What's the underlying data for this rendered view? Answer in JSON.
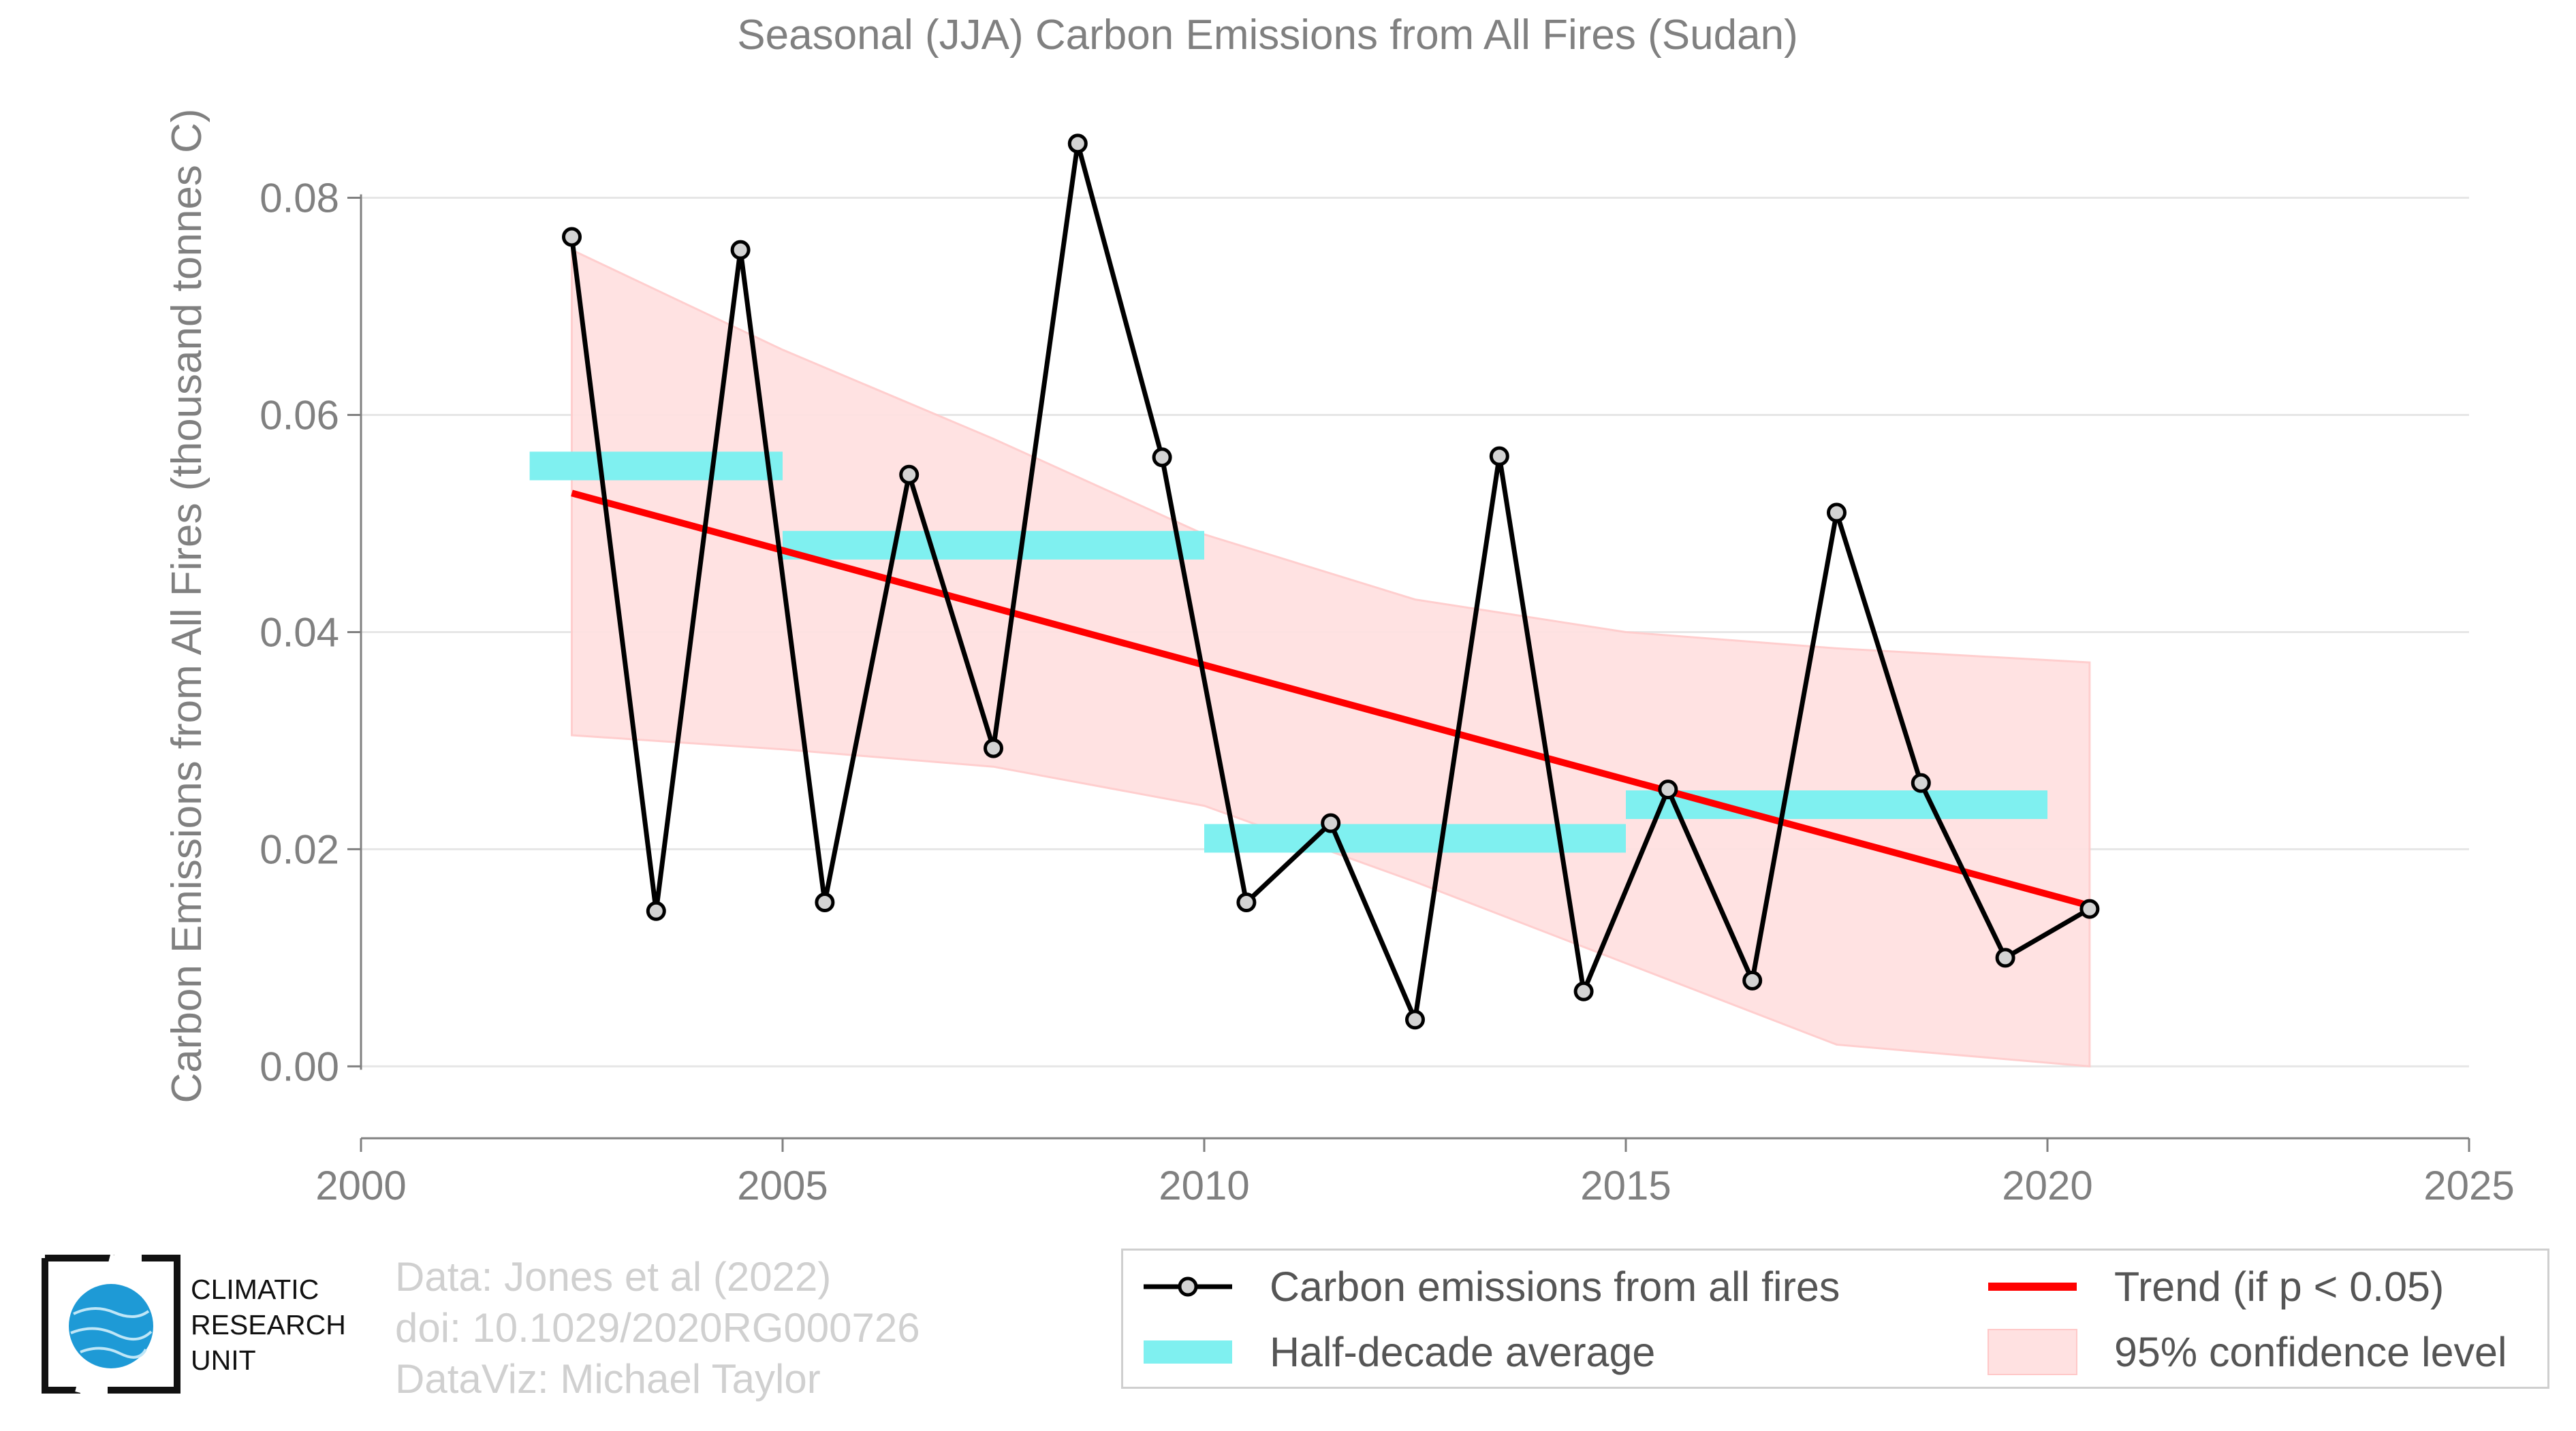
{
  "chart_data": {
    "type": "line",
    "title": "Seasonal (JJA) Carbon Emissions from All Fires (Sudan)",
    "xlabel": "",
    "ylabel": "Carbon Emissions from All Fires (thousand tonnes C)",
    "xlim": [
      2000,
      2025
    ],
    "ylim": [
      -0.0065,
      0.0885
    ],
    "x_ticks": [
      2000,
      2005,
      2010,
      2015,
      2020,
      2025
    ],
    "y_ticks": [
      0.0,
      0.02,
      0.04,
      0.06,
      0.08
    ],
    "y_tick_labels": [
      "0.00",
      "0.02",
      "0.04",
      "0.06",
      "0.08"
    ],
    "grid": "horizontal",
    "legend_position": "bottom-right",
    "series": [
      {
        "name": "Carbon emissions from all fires",
        "type": "line+markers",
        "color": "#000000",
        "x": [
          2002.5,
          2003.5,
          2004.5,
          2005.5,
          2006.5,
          2007.5,
          2008.5,
          2009.5,
          2010.5,
          2011.5,
          2012.5,
          2013.5,
          2014.5,
          2015.5,
          2016.5,
          2017.5,
          2018.5,
          2019.5,
          2020.5
        ],
        "y": [
          0.0764,
          0.0143,
          0.0752,
          0.0151,
          0.0545,
          0.0293,
          0.085,
          0.0561,
          0.0151,
          0.0224,
          0.0043,
          0.0562,
          0.0069,
          0.0255,
          0.0079,
          0.051,
          0.0261,
          0.01,
          0.0145
        ]
      },
      {
        "name": "Half-decade average",
        "type": "bars",
        "color": "#7ff0f0",
        "segments": [
          {
            "x0": 2002,
            "x1": 2005,
            "y": 0.0553
          },
          {
            "x0": 2005,
            "x1": 2010,
            "y": 0.048
          },
          {
            "x0": 2010,
            "x1": 2015,
            "y": 0.021
          },
          {
            "x0": 2015,
            "x1": 2020,
            "y": 0.0241
          }
        ]
      },
      {
        "name": "Trend (if p < 0.05)",
        "type": "line",
        "color": "#ff0000",
        "x": [
          2002.5,
          2020.5
        ],
        "y": [
          0.0528,
          0.0148
        ]
      },
      {
        "name": "95% confidence level",
        "type": "band",
        "color": "#ffe1e1",
        "x": [
          2002.5,
          2005,
          2007.5,
          2010,
          2012.5,
          2015,
          2017.5,
          2020.5
        ],
        "lower": [
          0.0305,
          0.0292,
          0.0276,
          0.024,
          0.017,
          0.0095,
          0.002,
          -0.001
        ],
        "upper": [
          0.0752,
          0.066,
          0.0578,
          0.049,
          0.043,
          0.04,
          0.0385,
          0.0372
        ]
      }
    ]
  },
  "legend": {
    "items": [
      {
        "label": "Carbon emissions from all fires"
      },
      {
        "label": "Trend (if p < 0.05)"
      },
      {
        "label": "Half-decade average"
      },
      {
        "label": "95% confidence level"
      }
    ]
  },
  "credits": {
    "line1": "Data: Jones et al (2022)",
    "line2": "doi: 10.1029/2020RG000726",
    "line3": "DataViz: Michael Taylor"
  },
  "logo": {
    "line1": "CLIMATIC",
    "line2": "RESEARCH",
    "line3": "UNIT"
  },
  "colors": {
    "axis_text": "#808080",
    "grid": "#e6e6e6",
    "trend": "#ff0000",
    "band": "#ffe1e1",
    "half_decade": "#7ff0f0",
    "logo_blue": "#1e9ad6"
  }
}
